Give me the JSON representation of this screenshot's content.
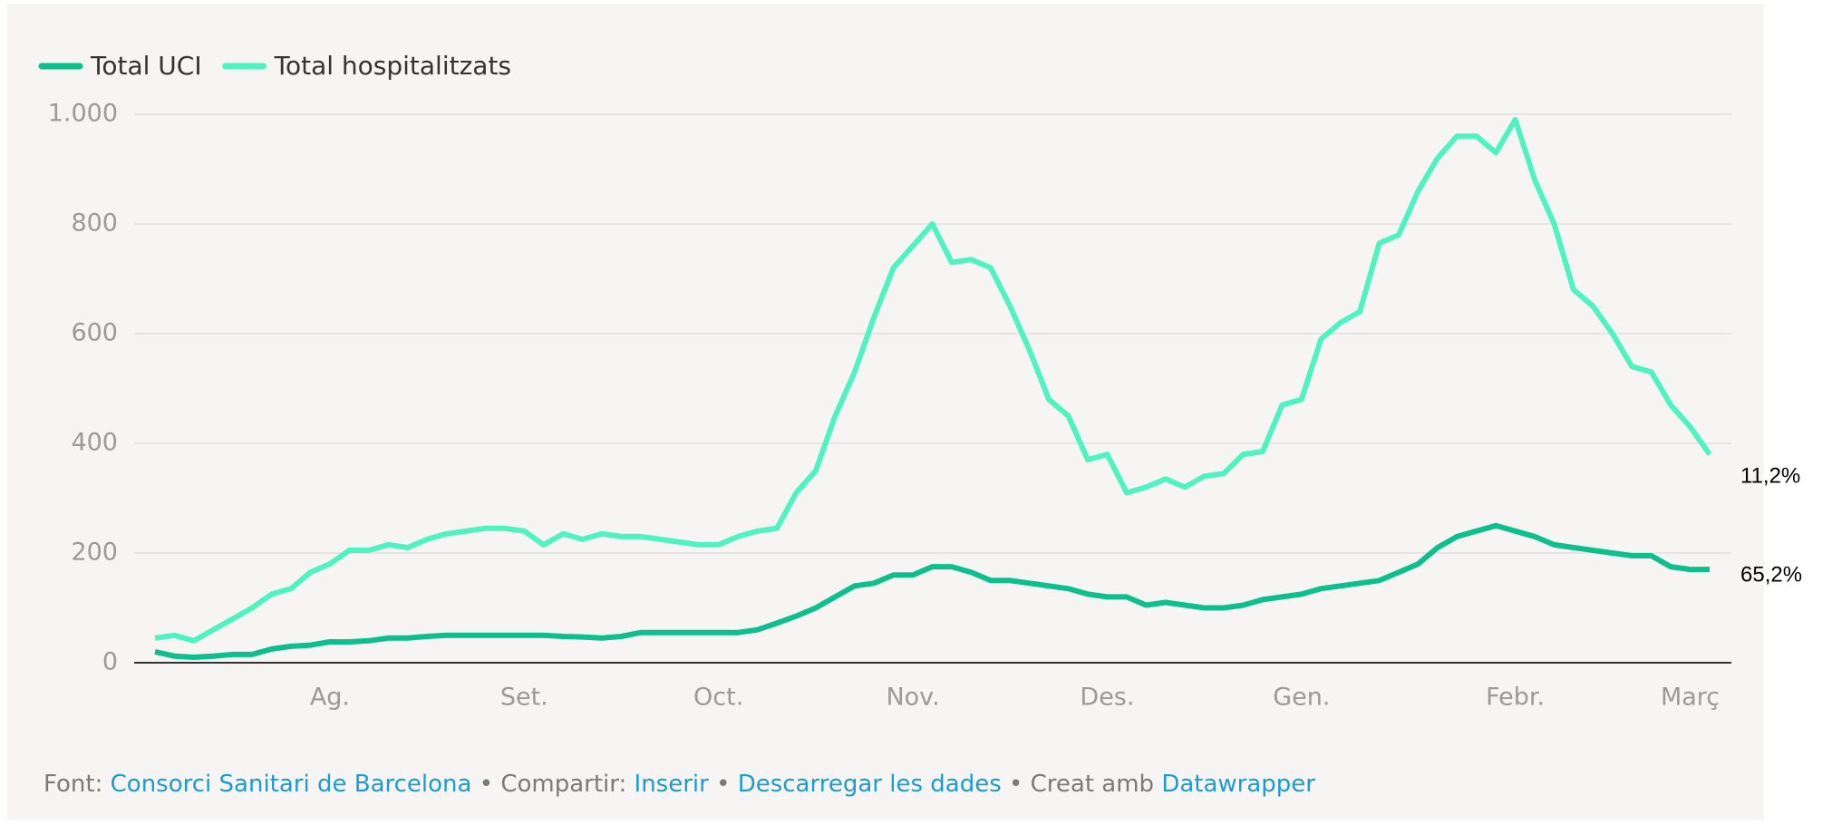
{
  "chart_data": {
    "type": "line",
    "categories": [
      null,
      null,
      null,
      null,
      null,
      null,
      null,
      null,
      null,
      "Ag.",
      null,
      null,
      null,
      null,
      null,
      null,
      null,
      null,
      null,
      "Set.",
      null,
      null,
      null,
      null,
      null,
      null,
      null,
      null,
      null,
      "Oct.",
      null,
      null,
      null,
      null,
      null,
      null,
      null,
      null,
      null,
      "Nov.",
      null,
      null,
      null,
      null,
      null,
      null,
      null,
      null,
      null,
      "Des.",
      null,
      null,
      null,
      null,
      null,
      null,
      null,
      null,
      null,
      "Gen.",
      null,
      null,
      null,
      null,
      null,
      null,
      null,
      null,
      null,
      null,
      "Febr.",
      null,
      null,
      null,
      null,
      null,
      null,
      null,
      null,
      "Març",
      null
    ],
    "series": [
      {
        "name": "Total UCI",
        "color": "#0dbf8c",
        "values": [
          20,
          12,
          10,
          12,
          15,
          15,
          25,
          30,
          32,
          38,
          38,
          40,
          45,
          45,
          48,
          50,
          50,
          50,
          50,
          50,
          50,
          48,
          47,
          45,
          48,
          55,
          55,
          55,
          55,
          55,
          55,
          60,
          72,
          85,
          100,
          120,
          140,
          145,
          160,
          160,
          175,
          175,
          165,
          150,
          150,
          145,
          140,
          135,
          125,
          120,
          120,
          105,
          110,
          105,
          100,
          100,
          105,
          115,
          120,
          125,
          135,
          140,
          145,
          150,
          165,
          180,
          210,
          230,
          240,
          250,
          240,
          230,
          215,
          210,
          205,
          200,
          195,
          195,
          175,
          170,
          170
        ]
      },
      {
        "name": "Total hospitalitzats",
        "color": "#4ff2c1",
        "values": [
          45,
          50,
          40,
          60,
          80,
          100,
          125,
          135,
          165,
          180,
          205,
          205,
          215,
          210,
          225,
          235,
          240,
          245,
          245,
          240,
          215,
          235,
          225,
          235,
          230,
          230,
          225,
          220,
          215,
          215,
          230,
          240,
          245,
          310,
          350,
          450,
          530,
          630,
          720,
          760,
          800,
          730,
          735,
          720,
          650,
          570,
          480,
          450,
          370,
          380,
          310,
          320,
          335,
          320,
          340,
          345,
          380,
          385,
          470,
          480,
          590,
          620,
          640,
          765,
          780,
          860,
          920,
          960,
          960,
          930,
          990,
          880,
          800,
          680,
          650,
          600,
          540,
          530,
          470,
          430,
          380
        ]
      }
    ],
    "ylim": [
      0,
      1000
    ],
    "yticks": [
      0,
      200,
      400,
      600,
      800,
      {
        "value": 1000,
        "label": "1.000"
      }
    ],
    "grid": true,
    "legend": "top-left",
    "annotations": [
      {
        "series": 1,
        "text": "11,2%"
      },
      {
        "series": 0,
        "text": "65,2%"
      }
    ]
  },
  "footer": {
    "parts": [
      {
        "text": "Font:",
        "link": false
      },
      {
        "text": "Consorci Sanitari de Barcelona",
        "link": true
      },
      {
        "text": "• Compartir:",
        "link": false
      },
      {
        "text": "Inserir",
        "link": true
      },
      {
        "text": "•",
        "link": false
      },
      {
        "text": "Descarregar les dades",
        "link": true
      },
      {
        "text": "• Creat amb",
        "link": false
      },
      {
        "text": "Datawrapper",
        "link": true
      }
    ]
  }
}
